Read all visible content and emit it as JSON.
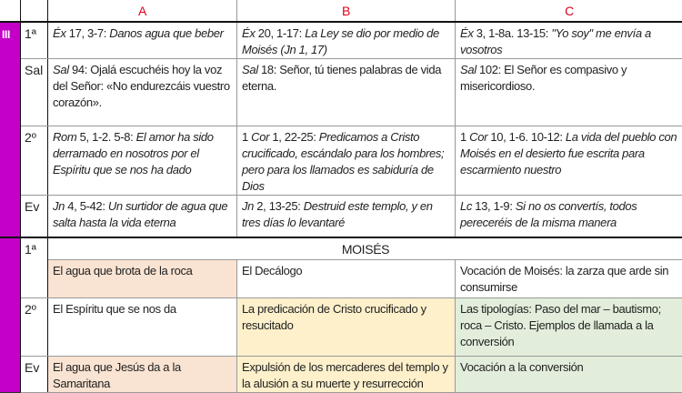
{
  "colors": {
    "purple": "#c400c8",
    "header_red": "#e0001a",
    "peach": "#f9e3d2",
    "yellow": "#fdf0cb",
    "green": "#e2eedb"
  },
  "headers": [
    "A",
    "B",
    "C"
  ],
  "section1": {
    "label": "III",
    "rows": [
      {
        "label": "1ª",
        "cells": [
          [
            {
              "t": "Éx",
              "i": true
            },
            {
              "t": " 17, 3-7:  "
            },
            {
              "t": "Danos agua que beber",
              "i": true
            }
          ],
          [
            {
              "t": "Éx",
              "i": true
            },
            {
              "t": " 20, 1-17:  "
            },
            {
              "t": "La Ley se dio por medio de Moisés (Jn 1, 17)",
              "i": true
            }
          ],
          [
            {
              "t": "Éx",
              "i": true
            },
            {
              "t": " 3, 1-8a. 13-15: "
            },
            {
              "t": "\"Yo soy\" me envía a vosotros",
              "i": true
            }
          ]
        ]
      },
      {
        "label": "Sal",
        "cells": [
          [
            {
              "t": "Sal",
              "i": true
            },
            {
              "t": " 94:  Ojalá escuchéis hoy la voz del Señor: «No endurezcáis vuestro corazón»."
            }
          ],
          [
            {
              "t": "Sal",
              "i": true
            },
            {
              "t": " 18: Señor, tú tienes palabras de vida eterna."
            }
          ],
          [
            {
              "t": "Sal",
              "i": true
            },
            {
              "t": " 102: El Señor es compasivo y misericordioso."
            }
          ]
        ]
      },
      {
        "label": "2º",
        "cells": [
          [
            {
              "t": "Rom",
              "i": true
            },
            {
              "t": " 5, 1-2. 5-8: "
            },
            {
              "t": "El amor ha sido derramado en nosotros por el Espíritu que se nos ha dado",
              "i": true
            }
          ],
          [
            {
              "t": "1 "
            },
            {
              "t": "Cor",
              "i": true
            },
            {
              "t": " 1, 22-25: "
            },
            {
              "t": "Predicamos a Cristo crucificado, escándalo para los hombres; pero para los llamados es sabiduría de Dios",
              "i": true
            }
          ],
          [
            {
              "t": "1 "
            },
            {
              "t": "Cor",
              "i": true
            },
            {
              "t": " 10, 1-6. 10-12: "
            },
            {
              "t": "La vida del pueblo con Moisés en el desierto fue escrita para escarmiento nuestro",
              "i": true
            }
          ]
        ]
      },
      {
        "label": "Ev",
        "cells": [
          [
            {
              "t": "Jn",
              "i": true
            },
            {
              "t": " 4, 5-42: "
            },
            {
              "t": "Un surtidor de agua que salta hasta la vida eterna",
              "i": true
            }
          ],
          [
            {
              "t": "Jn",
              "i": true
            },
            {
              "t": " 2, 13-25: "
            },
            {
              "t": "Destruid este templo, y en tres días lo levantaré",
              "i": true
            }
          ],
          [
            {
              "t": "Lc",
              "i": true
            },
            {
              "t": " 13, 1-9: "
            },
            {
              "t": "Si no os convertís, todos pereceréis de la misma manera",
              "i": true
            }
          ]
        ]
      }
    ]
  },
  "section2": {
    "row1_label": "1ª",
    "theme": "MOISÉS",
    "row1_cells": [
      "El agua que brota de la roca",
      "El Decálogo",
      "Vocación de Moisés: la zarza que arde sin consumirse"
    ],
    "row1_colors": [
      "peach",
      "",
      ""
    ],
    "rows": [
      {
        "label": "2º",
        "cells": [
          "El Espíritu que se nos da",
          "La predicación de Cristo crucificado y resucitado",
          "Las tipologías: Paso del mar – bautismo; roca – Cristo. Ejemplos de llamada a la conversión"
        ],
        "colors": [
          "",
          "yellow",
          "green"
        ]
      },
      {
        "label": "Ev",
        "cells": [
          "El agua que Jesús da a la Samaritana",
          "Expulsión de los mercaderes del templo y la alusión a su muerte y resurrección",
          "Vocación a la conversión"
        ],
        "colors": [
          "peach",
          "yellow",
          "green"
        ]
      }
    ]
  }
}
